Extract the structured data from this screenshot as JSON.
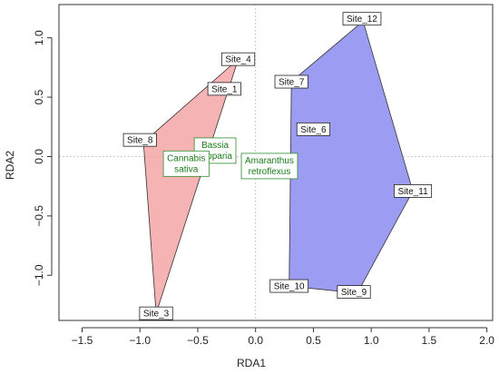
{
  "chart_data": {
    "type": "scatter",
    "title": "",
    "xlabel": "RDA1",
    "ylabel": "RDA2",
    "xlim": [
      -1.7,
      2.05
    ],
    "ylim": [
      -1.38,
      1.28
    ],
    "x_ticks": [
      -1.5,
      -1.0,
      -0.5,
      0.0,
      0.5,
      1.0,
      1.5,
      2.0
    ],
    "x_tick_labels": [
      "−1.5",
      "−1.0",
      "−0.5",
      "0.0",
      "0.5",
      "1.0",
      "1.5",
      "2.0"
    ],
    "y_ticks": [
      -1.0,
      -0.5,
      0.0,
      0.5,
      1.0
    ],
    "y_tick_labels": [
      "−1.0",
      "−0.5",
      "0.0",
      "0.5",
      "1.0"
    ],
    "reference_lines": {
      "x": 0,
      "y": 0,
      "style": "dotted"
    },
    "grid": false,
    "sites": [
      {
        "label": "Site_1",
        "x": -0.27,
        "y": 0.57
      },
      {
        "label": "Site_3",
        "x": -0.86,
        "y": -1.32
      },
      {
        "label": "Site_4",
        "x": -0.15,
        "y": 0.82
      },
      {
        "label": "Site_6",
        "x": 0.5,
        "y": 0.23
      },
      {
        "label": "Site_7",
        "x": 0.31,
        "y": 0.63
      },
      {
        "label": "Site_8",
        "x": -1.0,
        "y": 0.14
      },
      {
        "label": "Site_9",
        "x": 0.85,
        "y": -1.14
      },
      {
        "label": "Site_10",
        "x": 0.29,
        "y": -1.09
      },
      {
        "label": "Site_11",
        "x": 1.36,
        "y": -0.29
      },
      {
        "label": "Site_12",
        "x": 0.92,
        "y": 1.16
      }
    ],
    "hulls": [
      {
        "group": "red",
        "color": "#f4a6a6",
        "opacity": 0.85,
        "vertices": [
          [
            -0.15,
            0.82
          ],
          [
            -0.97,
            0.12
          ],
          [
            -0.86,
            -1.32
          ]
        ]
      },
      {
        "group": "blue",
        "color": "#9c9cf2",
        "opacity": 1,
        "vertices": [
          [
            0.93,
            1.14
          ],
          [
            1.36,
            -0.29
          ],
          [
            0.88,
            -1.15
          ],
          [
            0.29,
            -1.09
          ],
          [
            0.31,
            0.63
          ]
        ]
      }
    ],
    "species": [
      {
        "lines": [
          "Bassia",
          "scoparia"
        ],
        "x": -0.35,
        "y": 0.05
      },
      {
        "lines": [
          "Cannabis",
          "sativa"
        ],
        "x": -0.6,
        "y": -0.06
      },
      {
        "lines": [
          "Amaranthus",
          "retroflexus"
        ],
        "x": 0.12,
        "y": -0.08
      }
    ],
    "colors": {
      "species_text": "#1a7a1a",
      "species_border": "#2e8b2e",
      "frame": "#333333",
      "reference": "#bbbbbb"
    }
  }
}
